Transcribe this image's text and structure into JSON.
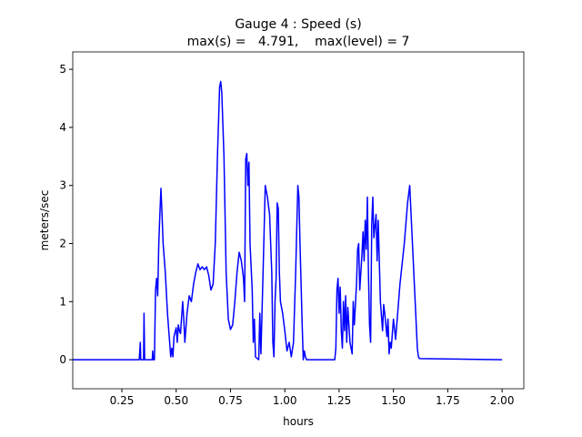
{
  "chart_data": {
    "type": "line",
    "title": "Gauge 4 : Speed (s)",
    "subtitle": "max(s) =   4.791,    max(level) = 7",
    "xlabel": "hours",
    "ylabel": "meters/sec",
    "xlim": [
      0.024,
      2.1
    ],
    "ylim": [
      -0.5,
      5.3
    ],
    "xticks": [
      0.25,
      {
        "value": 0.5,
        "label": "0.50"
      },
      0.75,
      {
        "value": 1.0,
        "label": "1.00"
      },
      1.25,
      {
        "value": 1.5,
        "label": "1.50"
      },
      1.75,
      {
        "value": 2.0,
        "label": "2.00"
      }
    ],
    "yticks": [
      0,
      1,
      2,
      3,
      4,
      5
    ],
    "series": [
      {
        "color": "#0000ff",
        "x": [
          0.024,
          0.33,
          0.335,
          0.337,
          0.35,
          0.352,
          0.355,
          0.39,
          0.392,
          0.395,
          0.4,
          0.405,
          0.41,
          0.415,
          0.42,
          0.425,
          0.43,
          0.435,
          0.44,
          0.45,
          0.46,
          0.47,
          0.475,
          0.48,
          0.485,
          0.49,
          0.5,
          0.505,
          0.51,
          0.515,
          0.52,
          0.53,
          0.535,
          0.54,
          0.55,
          0.56,
          0.57,
          0.58,
          0.59,
          0.6,
          0.61,
          0.62,
          0.63,
          0.64,
          0.65,
          0.66,
          0.67,
          0.68,
          0.69,
          0.7,
          0.705,
          0.71,
          0.72,
          0.73,
          0.74,
          0.75,
          0.76,
          0.77,
          0.78,
          0.79,
          0.8,
          0.81,
          0.815,
          0.82,
          0.825,
          0.83,
          0.835,
          0.84,
          0.85,
          0.855,
          0.86,
          0.865,
          0.87,
          0.88,
          0.885,
          0.89,
          0.9,
          0.91,
          0.92,
          0.93,
          0.94,
          0.945,
          0.95,
          0.955,
          0.96,
          0.965,
          0.97,
          0.975,
          0.98,
          0.99,
          1.0,
          1.01,
          1.02,
          1.03,
          1.04,
          1.05,
          1.06,
          1.065,
          1.07,
          1.08,
          1.085,
          1.09,
          1.095,
          1.1,
          1.23,
          1.235,
          1.24,
          1.245,
          1.25,
          1.255,
          1.26,
          1.265,
          1.27,
          1.275,
          1.28,
          1.285,
          1.29,
          1.295,
          1.3,
          1.31,
          1.315,
          1.32,
          1.33,
          1.335,
          1.34,
          1.345,
          1.35,
          1.355,
          1.36,
          1.365,
          1.37,
          1.375,
          1.38,
          1.385,
          1.39,
          1.395,
          1.4,
          1.405,
          1.41,
          1.42,
          1.425,
          1.43,
          1.44,
          1.45,
          1.455,
          1.46,
          1.47,
          1.475,
          1.48,
          1.485,
          1.49,
          1.5,
          1.51,
          1.53,
          1.55,
          1.565,
          1.575,
          1.58,
          1.59,
          1.6,
          1.61,
          1.615,
          1.62,
          2.0
        ],
        "values": [
          0,
          0,
          0.3,
          0,
          0,
          0.8,
          0,
          0,
          0.15,
          0,
          0,
          1.2,
          1.4,
          1.1,
          2.0,
          2.5,
          2.95,
          2.5,
          2.0,
          1.5,
          0.8,
          0.3,
          0.05,
          0.2,
          0.05,
          0.4,
          0.55,
          0.3,
          0.6,
          0.5,
          0.45,
          1.0,
          0.7,
          0.3,
          0.8,
          1.1,
          1.0,
          1.3,
          1.5,
          1.65,
          1.55,
          1.6,
          1.55,
          1.6,
          1.45,
          1.2,
          1.3,
          2.0,
          3.5,
          4.7,
          4.79,
          4.6,
          3.5,
          1.5,
          0.7,
          0.52,
          0.6,
          1.0,
          1.5,
          1.85,
          1.7,
          1.4,
          1.0,
          3.45,
          3.55,
          3.0,
          3.4,
          2.0,
          1.2,
          0.3,
          0.7,
          0.05,
          0.03,
          0,
          0.8,
          0.1,
          1.5,
          3.0,
          2.8,
          2.5,
          1.5,
          0.3,
          0.05,
          1.0,
          1.4,
          2.7,
          2.6,
          1.5,
          1.0,
          0.8,
          0.5,
          0.15,
          0.3,
          0.05,
          0.3,
          1.5,
          3.0,
          2.8,
          2.0,
          0.6,
          0,
          0.15,
          0.05,
          0,
          0,
          0.2,
          1.2,
          1.4,
          0.8,
          1.25,
          0.5,
          0.2,
          1.0,
          0.5,
          1.1,
          0.3,
          0.9,
          0.6,
          0.3,
          0.1,
          1.0,
          0.6,
          1.3,
          1.9,
          2.0,
          1.2,
          1.5,
          1.8,
          2.2,
          1.7,
          2.4,
          1.9,
          2.8,
          1.5,
          0.6,
          0.3,
          2.3,
          2.8,
          2.1,
          2.5,
          1.7,
          2.4,
          1.0,
          0.5,
          0.95,
          0.8,
          0.4,
          0.7,
          0.1,
          0.3,
          0.2,
          0.7,
          0.35,
          1.3,
          2.0,
          2.7,
          3.0,
          2.6,
          1.8,
          1.0,
          0.2,
          0.05,
          0.02,
          0
        ]
      }
    ]
  }
}
